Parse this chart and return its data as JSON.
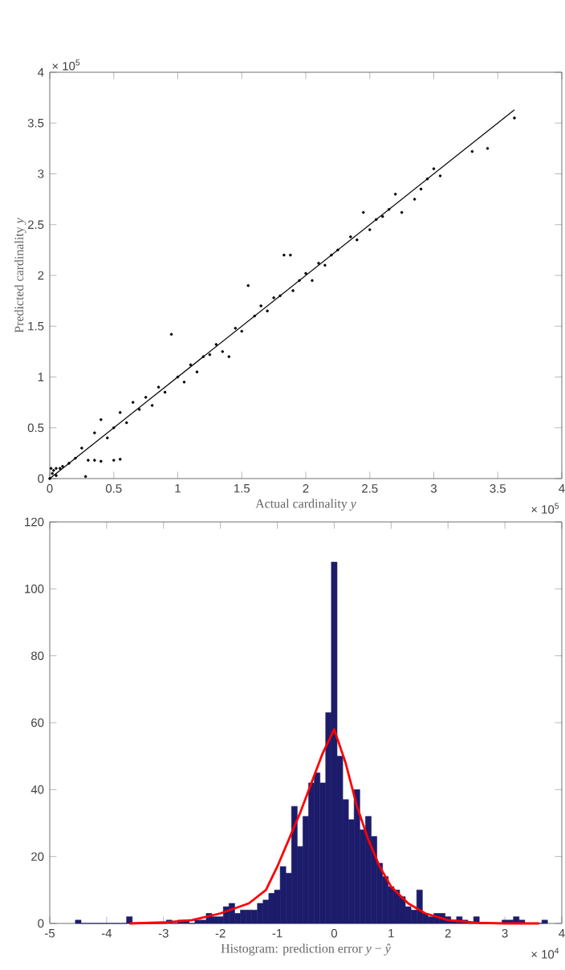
{
  "chart_data": [
    {
      "type": "scatter",
      "xlabel": "Actual cardinality *y*",
      "ylabel": "Predicted cardinality *y*",
      "annotations": [
        "× 10$^{5}$",
        "× 10$^{5}$"
      ],
      "xlim": [
        0,
        4
      ],
      "ylim": [
        0,
        4
      ],
      "xticks": [
        0,
        0.5,
        1,
        1.5,
        2,
        2.5,
        3,
        3.5,
        4
      ],
      "yticks": [
        0,
        0.5,
        1,
        1.5,
        2,
        2.5,
        3,
        3.5,
        4
      ],
      "series": [
        {
          "type": "scatter",
          "color": "#000000",
          "x": [
            0.0,
            0.01,
            0.02,
            0.03,
            0.05,
            0.05,
            0.08,
            0.1,
            0.15,
            0.2,
            0.25,
            0.28,
            0.3,
            0.35,
            0.35,
            0.4,
            0.4,
            0.45,
            0.5,
            0.5,
            0.55,
            0.55,
            0.6,
            0.65,
            0.7,
            0.75,
            0.8,
            0.85,
            0.9,
            0.95,
            1.0,
            1.05,
            1.1,
            1.15,
            1.2,
            1.25,
            1.3,
            1.35,
            1.4,
            1.45,
            1.5,
            1.55,
            1.6,
            1.65,
            1.7,
            1.75,
            1.8,
            1.83,
            1.88,
            1.9,
            1.95,
            2.0,
            2.05,
            2.1,
            2.15,
            2.2,
            2.25,
            2.35,
            2.4,
            2.45,
            2.5,
            2.55,
            2.6,
            2.65,
            2.7,
            2.75,
            2.85,
            2.9,
            2.95,
            3.0,
            3.05,
            3.3,
            3.42,
            3.63
          ],
          "values": [
            0.0,
            0.1,
            0.05,
            0.08,
            0.03,
            0.1,
            0.1,
            0.12,
            0.15,
            0.2,
            0.3,
            0.02,
            0.18,
            0.18,
            0.45,
            0.17,
            0.58,
            0.4,
            0.18,
            0.5,
            0.19,
            0.65,
            0.55,
            0.75,
            0.68,
            0.8,
            0.72,
            0.9,
            0.85,
            1.42,
            1.0,
            0.95,
            1.12,
            1.05,
            1.2,
            1.22,
            1.32,
            1.25,
            1.2,
            1.48,
            1.45,
            1.9,
            1.6,
            1.7,
            1.65,
            1.78,
            1.8,
            2.2,
            2.2,
            1.85,
            1.95,
            2.02,
            1.95,
            2.12,
            2.1,
            2.2,
            2.25,
            2.38,
            2.35,
            2.62,
            2.45,
            2.55,
            2.58,
            2.65,
            2.8,
            2.62,
            2.75,
            2.85,
            2.95,
            3.05,
            2.98,
            3.22,
            3.25,
            3.55
          ]
        },
        {
          "type": "line",
          "color": "#000000",
          "x": [
            0,
            3.63
          ],
          "values": [
            0,
            3.63
          ]
        }
      ]
    },
    {
      "type": "histogram",
      "xlabel": "Histogram: prediction error *y* − *ŷ*",
      "annotations": [
        "× 10$^{4}$"
      ],
      "xlim": [
        -5,
        4
      ],
      "ylim": [
        0,
        120
      ],
      "xticks": [
        -5,
        -4,
        -3,
        -2,
        -1,
        0,
        1,
        2,
        3,
        4
      ],
      "yticks": [
        0,
        20,
        40,
        60,
        80,
        100,
        120
      ],
      "color": "#1c1c6b",
      "bins": [
        -4.55,
        -4.45,
        -4.35,
        -4.25,
        -4.15,
        -4.05,
        -3.95,
        -3.85,
        -3.75,
        -3.65,
        -3.55,
        -3.45,
        -3.35,
        -3.25,
        -3.15,
        -3.05,
        -2.95,
        -2.85,
        -2.75,
        -2.65,
        -2.55,
        -2.45,
        -2.35,
        -2.25,
        -2.15,
        -2.05,
        -1.95,
        -1.85,
        -1.75,
        -1.65,
        -1.55,
        -1.45,
        -1.35,
        -1.25,
        -1.15,
        -1.05,
        -0.95,
        -0.85,
        -0.75,
        -0.65,
        -0.55,
        -0.45,
        -0.35,
        -0.25,
        -0.15,
        -0.05,
        0.05,
        0.15,
        0.25,
        0.35,
        0.45,
        0.55,
        0.65,
        0.75,
        0.85,
        0.95,
        1.05,
        1.15,
        1.25,
        1.35,
        1.45,
        1.55,
        1.65,
        1.75,
        1.85,
        1.95,
        2.05,
        2.15,
        2.25,
        2.35,
        2.45,
        2.55,
        2.65,
        2.75,
        2.85,
        2.95,
        3.05,
        3.15,
        3.25,
        3.35,
        3.45,
        3.55,
        3.65,
        3.75
      ],
      "values": [
        1,
        0,
        0,
        0,
        0,
        0,
        0,
        0,
        0,
        2,
        0,
        0,
        0,
        0,
        0,
        0,
        1,
        0,
        1,
        1,
        0,
        1,
        1,
        3,
        2,
        2,
        5,
        6,
        3,
        4,
        4,
        4,
        6,
        7,
        9,
        10,
        17,
        15,
        35,
        23,
        32,
        42,
        45,
        42,
        63,
        108,
        50,
        37,
        31,
        40,
        28,
        32,
        26,
        18,
        14,
        11,
        10,
        8,
        5,
        4,
        10,
        3,
        2,
        3,
        3,
        2,
        1,
        2,
        1,
        0,
        2,
        0,
        0,
        0,
        0,
        1,
        1,
        2,
        1,
        0,
        0,
        0,
        1
      ],
      "series": [
        {
          "type": "line",
          "color": "#ff0000",
          "x": [
            -3.6,
            -3,
            -2.5,
            -2,
            -1.5,
            -1.2,
            -1,
            -0.8,
            -0.6,
            -0.4,
            -0.2,
            0,
            0.2,
            0.4,
            0.6,
            0.8,
            1,
            1.3,
            1.6,
            2,
            2.5,
            3,
            3.6
          ],
          "values": [
            0,
            0.3,
            1,
            3,
            6,
            10,
            17,
            25,
            33,
            42,
            51,
            58,
            48,
            35,
            25,
            17,
            11,
            6,
            3,
            1,
            0.2,
            0,
            0
          ]
        }
      ]
    }
  ]
}
